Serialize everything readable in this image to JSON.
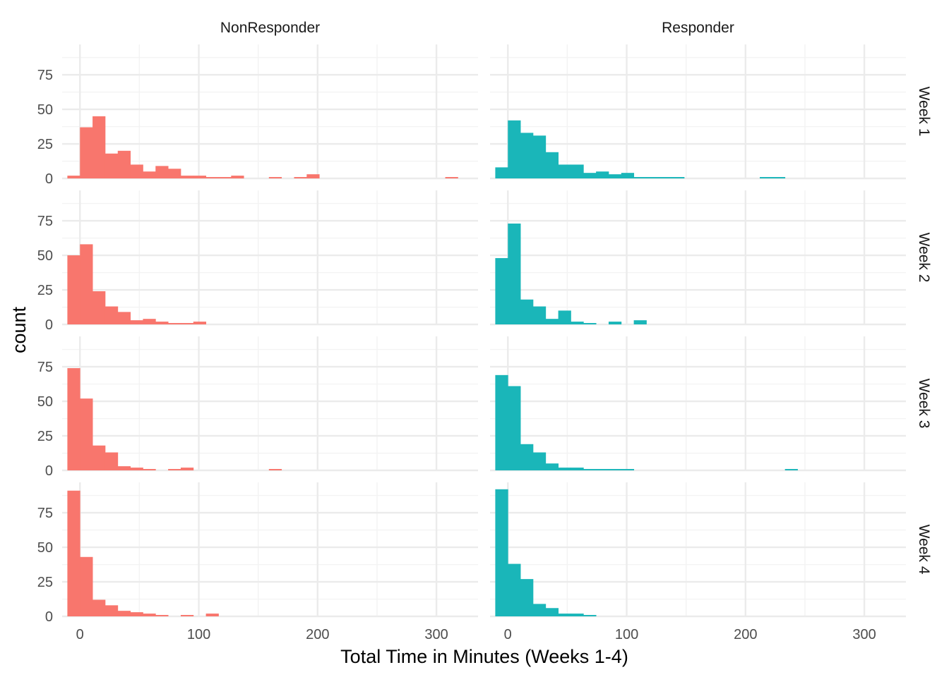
{
  "colors": {
    "NonResponder": "#F8766D",
    "Responder": "#1AB6B9",
    "grid_major": "#EBEBEB",
    "grid_minor": "#F3F3F3"
  },
  "chart_data": {
    "type": "histogram",
    "xlabel": "Total Time in Minutes (Weeks 1-4)",
    "ylabel": "count",
    "xlim": [
      -15,
      335
    ],
    "ylim": [
      0,
      97
    ],
    "x_ticks": [
      0,
      100,
      200,
      300
    ],
    "y_ticks": [
      0,
      25,
      50,
      75
    ],
    "bin_width": 10.6,
    "column_facets": [
      "NonResponder",
      "Responder"
    ],
    "row_facets": [
      "Week 1",
      "Week 2",
      "Week 3",
      "Week 4"
    ],
    "legend": "none",
    "panels": [
      {
        "group": "NonResponder",
        "week": "Week 1",
        "bins": [
          {
            "x": -5.3,
            "count": 2
          },
          {
            "x": 5.3,
            "count": 37
          },
          {
            "x": 15.9,
            "count": 45
          },
          {
            "x": 26.5,
            "count": 18
          },
          {
            "x": 37.1,
            "count": 20
          },
          {
            "x": 47.7,
            "count": 10
          },
          {
            "x": 58.3,
            "count": 5
          },
          {
            "x": 68.9,
            "count": 9
          },
          {
            "x": 79.5,
            "count": 7
          },
          {
            "x": 90.1,
            "count": 2
          },
          {
            "x": 100.7,
            "count": 2
          },
          {
            "x": 111.3,
            "count": 1
          },
          {
            "x": 121.9,
            "count": 1
          },
          {
            "x": 132.5,
            "count": 2
          },
          {
            "x": 164.3,
            "count": 1
          },
          {
            "x": 185.5,
            "count": 1
          },
          {
            "x": 196.1,
            "count": 3
          },
          {
            "x": 312.7,
            "count": 1
          }
        ]
      },
      {
        "group": "Responder",
        "week": "Week 1",
        "bins": [
          {
            "x": -5.3,
            "count": 8
          },
          {
            "x": 5.3,
            "count": 42
          },
          {
            "x": 15.9,
            "count": 33
          },
          {
            "x": 26.5,
            "count": 31
          },
          {
            "x": 37.1,
            "count": 19
          },
          {
            "x": 47.7,
            "count": 10
          },
          {
            "x": 58.3,
            "count": 10
          },
          {
            "x": 68.9,
            "count": 4
          },
          {
            "x": 79.5,
            "count": 5
          },
          {
            "x": 90.1,
            "count": 3
          },
          {
            "x": 100.7,
            "count": 4
          },
          {
            "x": 111.3,
            "count": 1
          },
          {
            "x": 121.9,
            "count": 1
          },
          {
            "x": 132.5,
            "count": 1
          },
          {
            "x": 143.1,
            "count": 1
          },
          {
            "x": 217.3,
            "count": 1
          },
          {
            "x": 227.9,
            "count": 1
          }
        ]
      },
      {
        "group": "NonResponder",
        "week": "Week 2",
        "bins": [
          {
            "x": -5.3,
            "count": 50
          },
          {
            "x": 5.3,
            "count": 58
          },
          {
            "x": 15.9,
            "count": 24
          },
          {
            "x": 26.5,
            "count": 13
          },
          {
            "x": 37.1,
            "count": 9
          },
          {
            "x": 47.7,
            "count": 3
          },
          {
            "x": 58.3,
            "count": 4
          },
          {
            "x": 68.9,
            "count": 2
          },
          {
            "x": 79.5,
            "count": 1
          },
          {
            "x": 90.1,
            "count": 1
          },
          {
            "x": 100.7,
            "count": 2
          }
        ]
      },
      {
        "group": "Responder",
        "week": "Week 2",
        "bins": [
          {
            "x": -5.3,
            "count": 48
          },
          {
            "x": 5.3,
            "count": 73
          },
          {
            "x": 15.9,
            "count": 18
          },
          {
            "x": 26.5,
            "count": 13
          },
          {
            "x": 37.1,
            "count": 4
          },
          {
            "x": 47.7,
            "count": 10
          },
          {
            "x": 58.3,
            "count": 2
          },
          {
            "x": 68.9,
            "count": 1
          },
          {
            "x": 90.1,
            "count": 2
          },
          {
            "x": 111.3,
            "count": 3
          }
        ]
      },
      {
        "group": "NonResponder",
        "week": "Week 3",
        "bins": [
          {
            "x": -5.3,
            "count": 74
          },
          {
            "x": 5.3,
            "count": 52
          },
          {
            "x": 15.9,
            "count": 18
          },
          {
            "x": 26.5,
            "count": 13
          },
          {
            "x": 37.1,
            "count": 3
          },
          {
            "x": 47.7,
            "count": 2
          },
          {
            "x": 58.3,
            "count": 1
          },
          {
            "x": 79.5,
            "count": 1
          },
          {
            "x": 90.1,
            "count": 2
          },
          {
            "x": 164.3,
            "count": 1
          }
        ]
      },
      {
        "group": "Responder",
        "week": "Week 3",
        "bins": [
          {
            "x": -5.3,
            "count": 69
          },
          {
            "x": 5.3,
            "count": 61
          },
          {
            "x": 15.9,
            "count": 19
          },
          {
            "x": 26.5,
            "count": 13
          },
          {
            "x": 37.1,
            "count": 5
          },
          {
            "x": 47.7,
            "count": 2
          },
          {
            "x": 58.3,
            "count": 2
          },
          {
            "x": 68.9,
            "count": 1
          },
          {
            "x": 79.5,
            "count": 1
          },
          {
            "x": 90.1,
            "count": 1
          },
          {
            "x": 100.7,
            "count": 1
          },
          {
            "x": 238.5,
            "count": 1
          }
        ]
      },
      {
        "group": "NonResponder",
        "week": "Week 4",
        "bins": [
          {
            "x": -5.3,
            "count": 91
          },
          {
            "x": 5.3,
            "count": 43
          },
          {
            "x": 15.9,
            "count": 12
          },
          {
            "x": 26.5,
            "count": 8
          },
          {
            "x": 37.1,
            "count": 4
          },
          {
            "x": 47.7,
            "count": 3
          },
          {
            "x": 58.3,
            "count": 2
          },
          {
            "x": 68.9,
            "count": 1
          },
          {
            "x": 90.1,
            "count": 1
          },
          {
            "x": 111.3,
            "count": 2
          }
        ]
      },
      {
        "group": "Responder",
        "week": "Week 4",
        "bins": [
          {
            "x": -5.3,
            "count": 92
          },
          {
            "x": 5.3,
            "count": 38
          },
          {
            "x": 15.9,
            "count": 27
          },
          {
            "x": 26.5,
            "count": 9
          },
          {
            "x": 37.1,
            "count": 6
          },
          {
            "x": 47.7,
            "count": 2
          },
          {
            "x": 58.3,
            "count": 2
          },
          {
            "x": 68.9,
            "count": 1
          }
        ]
      }
    ]
  }
}
